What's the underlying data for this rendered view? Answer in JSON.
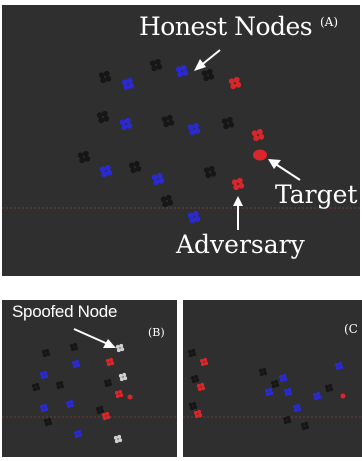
{
  "panel_a": {
    "label_honest_nodes": "Honest Nodes",
    "tag": "(A)",
    "label_target": "Target",
    "label_adversary": "Adversary"
  },
  "panel_b": {
    "label_spoofed_node": "Spoofed Node",
    "tag": "(B)"
  },
  "panel_c": {
    "tag": "(C"
  },
  "colors": {
    "panel_bg": "#2f2f2f",
    "honest_black": "#161616",
    "honest_blue": "#2a2ad2",
    "adversary_red": "#d8262b",
    "spoofed_white": "#cfcfcf",
    "range_line": "#7a3b3b",
    "arrow": "#ffffff",
    "text": "#ffffff"
  },
  "legend_semantics": {
    "honest_node_icon": "four-dot-cluster-icon",
    "adversary_node_icon": "four-dot-cluster-icon",
    "spoofed_node_icon": "four-dot-cluster-icon",
    "target_icon": "circle-icon"
  }
}
